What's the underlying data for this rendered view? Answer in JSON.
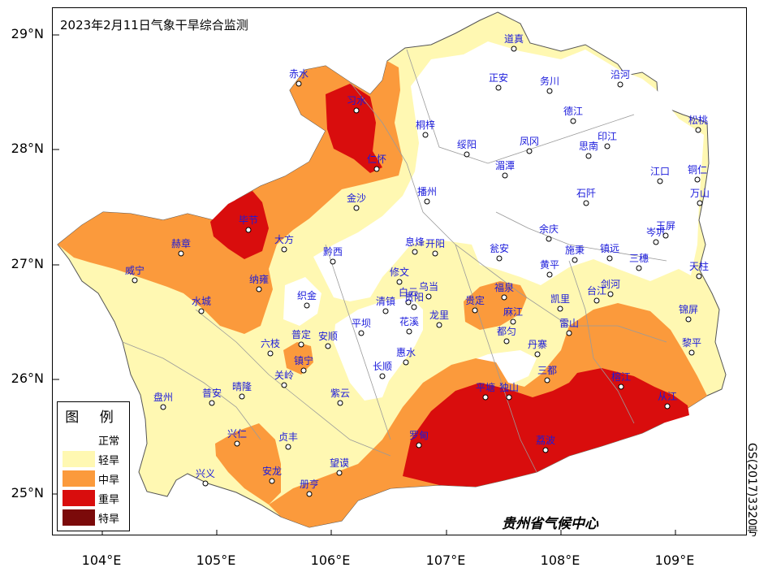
{
  "title": "2023年2月11日气象干旱综合监测",
  "axes": {
    "y_labels": [
      "29°N",
      "28°N",
      "27°N",
      "26°N",
      "25°N"
    ],
    "x_labels": [
      "104°E",
      "105°E",
      "106°E",
      "107°E",
      "108°E",
      "109°E"
    ]
  },
  "legend": {
    "title": "图 例",
    "items": [
      {
        "label": "正常",
        "color": "#ffffff"
      },
      {
        "label": "轻旱",
        "color": "#fff8b2"
      },
      {
        "label": "中旱",
        "color": "#fb9a3c"
      },
      {
        "label": "重旱",
        "color": "#d90d0d"
      },
      {
        "label": "特旱",
        "color": "#7b0a0a"
      }
    ]
  },
  "credit": "贵州省气候中心",
  "map_number": "GS(2017)3320号",
  "cities": [
    {
      "name": "道真"
    },
    {
      "name": "赤水"
    },
    {
      "name": "习水"
    },
    {
      "name": "正安"
    },
    {
      "name": "务川"
    },
    {
      "name": "沿河"
    },
    {
      "name": "桐梓"
    },
    {
      "name": "德江"
    },
    {
      "name": "松桃"
    },
    {
      "name": "仁怀"
    },
    {
      "name": "绥阳"
    },
    {
      "name": "凤冈"
    },
    {
      "name": "印江"
    },
    {
      "name": "思南"
    },
    {
      "name": "湄潭"
    },
    {
      "name": "江口"
    },
    {
      "name": "铜仁"
    },
    {
      "name": "播州"
    },
    {
      "name": "石阡"
    },
    {
      "name": "万山"
    },
    {
      "name": "金沙"
    },
    {
      "name": "毕节"
    },
    {
      "name": "余庆"
    },
    {
      "name": "岑巩"
    },
    {
      "name": "玉屏"
    },
    {
      "name": "大方"
    },
    {
      "name": "赫章"
    },
    {
      "name": "息烽"
    },
    {
      "name": "开阳"
    },
    {
      "name": "瓮安"
    },
    {
      "name": "施秉"
    },
    {
      "name": "镇远"
    },
    {
      "name": "黔西"
    },
    {
      "name": "三穗"
    },
    {
      "name": "威宁"
    },
    {
      "name": "纳雍"
    },
    {
      "name": "修文"
    },
    {
      "name": "黄平"
    },
    {
      "name": "天柱"
    },
    {
      "name": "织金"
    },
    {
      "name": "白云"
    },
    {
      "name": "乌当"
    },
    {
      "name": "福泉"
    },
    {
      "name": "剑河"
    },
    {
      "name": "台江"
    },
    {
      "name": "水城"
    },
    {
      "name": "清镇"
    },
    {
      "name": "贵阳"
    },
    {
      "name": "贵定"
    },
    {
      "name": "凯里"
    },
    {
      "name": "龙里"
    },
    {
      "name": "麻江"
    },
    {
      "name": "花溪"
    },
    {
      "name": "锦屏"
    },
    {
      "name": "平坝"
    },
    {
      "name": "都匀"
    },
    {
      "name": "雷山"
    },
    {
      "name": "普定"
    },
    {
      "name": "安顺"
    },
    {
      "name": "六枝"
    },
    {
      "name": "丹寨"
    },
    {
      "name": "黎平"
    },
    {
      "name": "惠水"
    },
    {
      "name": "镇宁"
    },
    {
      "name": "长顺"
    },
    {
      "name": "关岭"
    },
    {
      "name": "三都"
    },
    {
      "name": "榕江"
    },
    {
      "name": "晴隆"
    },
    {
      "name": "紫云"
    },
    {
      "name": "盘州"
    },
    {
      "name": "普安"
    },
    {
      "name": "平塘"
    },
    {
      "name": "独山"
    },
    {
      "name": "从江"
    },
    {
      "name": "兴仁"
    },
    {
      "name": "贞丰"
    },
    {
      "name": "罗甸"
    },
    {
      "name": "荔波"
    },
    {
      "name": "安龙"
    },
    {
      "name": "望谟"
    },
    {
      "name": "兴义"
    },
    {
      "name": "册亨"
    }
  ]
}
